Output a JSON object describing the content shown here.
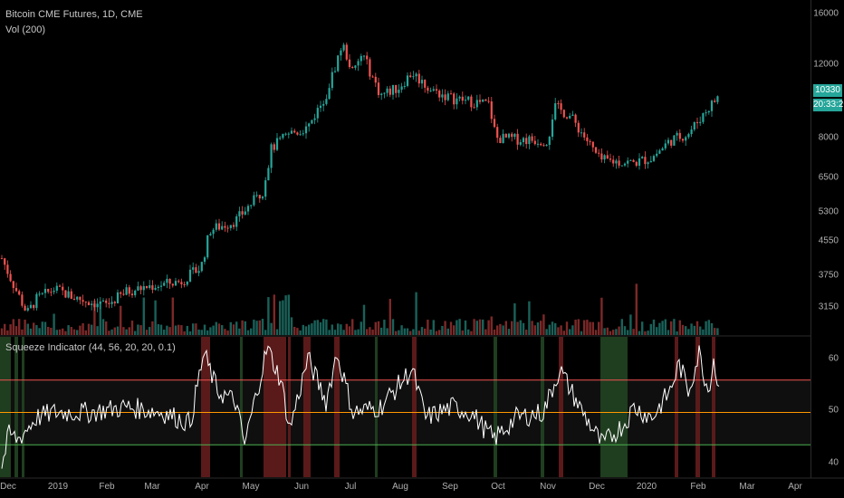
{
  "legend": {
    "symbol": "Bitcoin CME Futures, 1D, CME",
    "volume": "Vol (200)",
    "indicator": "Squeeze Indicator (44, 56, 20, 20, 0.1)"
  },
  "price_axis": {
    "ticks": [
      "16000",
      "12000",
      "10330",
      "20:33:26",
      "8000",
      "6500",
      "5300",
      "4550",
      "3750",
      "3150"
    ]
  },
  "indicator_axis": {
    "ticks": [
      "60",
      "50",
      "40"
    ]
  },
  "x_axis": {
    "ticks": [
      "Dec",
      "2019",
      "Feb",
      "Mar",
      "Apr",
      "May",
      "Jun",
      "Jul",
      "Aug",
      "Sep",
      "Oct",
      "Nov",
      "Dec",
      "2020",
      "Feb",
      "Mar",
      "Apr"
    ]
  },
  "colors": {
    "up": "#26a69a",
    "down": "#ef5350",
    "line": "#ffffff",
    "upper": "#ef5350",
    "mid": "#ff9800",
    "lower": "#4caf50"
  },
  "chart_data": [
    {
      "type": "candlestick",
      "title": "Bitcoin CME Futures, 1D, CME",
      "yscale": "log",
      "ylim": [
        2900,
        17000
      ],
      "x": [
        "Dec",
        "2019",
        "Feb",
        "Mar",
        "Apr",
        "May",
        "Jun",
        "Jul",
        "Aug",
        "Sep",
        "Oct",
        "Nov",
        "Dec",
        "2020",
        "Feb"
      ],
      "close_approx": [
        3900,
        3700,
        3500,
        3900,
        5300,
        8000,
        11000,
        10500,
        10000,
        9600,
        8100,
        9200,
        7300,
        8500,
        10330
      ],
      "last_price": 10330
    },
    {
      "type": "bar",
      "title": "Vol (200)"
    },
    {
      "type": "line",
      "title": "Squeeze Indicator (44, 56, 20, 20, 0.1)",
      "ylim": [
        38,
        64
      ],
      "levels": {
        "upper": 56,
        "mid": 50,
        "lower": 44
      }
    }
  ]
}
